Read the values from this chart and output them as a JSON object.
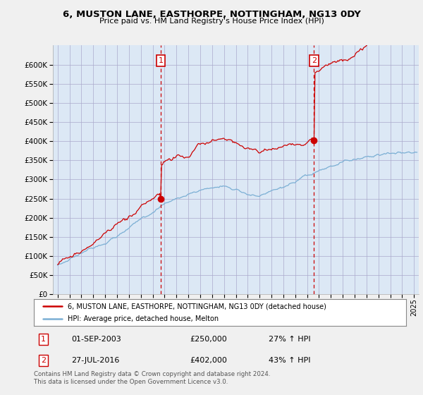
{
  "title": "6, MUSTON LANE, EASTHORPE, NOTTINGHAM, NG13 0DY",
  "subtitle": "Price paid vs. HM Land Registry's House Price Index (HPI)",
  "ytick_values": [
    0,
    50000,
    100000,
    150000,
    200000,
    250000,
    300000,
    350000,
    400000,
    450000,
    500000,
    550000,
    600000
  ],
  "ylim": [
    0,
    650000
  ],
  "sale1": {
    "date_label": "01-SEP-2003",
    "price": 250000,
    "hpi_pct": "27% ↑ HPI",
    "marker_x": 2003.67
  },
  "sale2": {
    "date_label": "27-JUL-2016",
    "price": 402000,
    "hpi_pct": "43% ↑ HPI",
    "marker_x": 2016.58
  },
  "legend_line1": "6, MUSTON LANE, EASTHORPE, NOTTINGHAM, NG13 0DY (detached house)",
  "legend_line2": "HPI: Average price, detached house, Melton",
  "footnote": "Contains HM Land Registry data © Crown copyright and database right 2024.\nThis data is licensed under the Open Government Licence v3.0.",
  "red_color": "#cc0000",
  "blue_color": "#7bafd4",
  "bg_color": "#f0f0f0",
  "plot_bg": "#dce8f5",
  "grid_color": "#aaaacc",
  "xmin": 1994.6,
  "xmax": 2025.4
}
